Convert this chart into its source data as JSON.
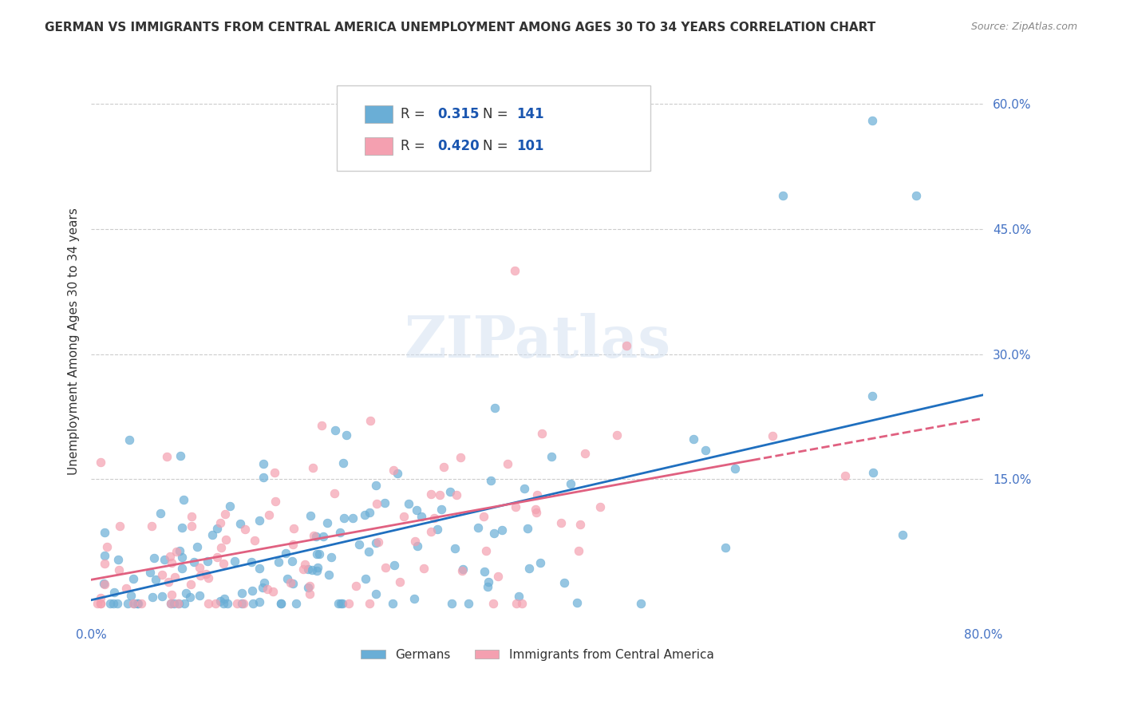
{
  "title": "GERMAN VS IMMIGRANTS FROM CENTRAL AMERICA UNEMPLOYMENT AMONG AGES 30 TO 34 YEARS CORRELATION CHART",
  "source_text": "Source: ZipAtlas.com",
  "xlabel": "",
  "ylabel": "Unemployment Among Ages 30 to 34 years",
  "xlim": [
    0.0,
    0.8
  ],
  "ylim": [
    -0.02,
    0.65
  ],
  "xticks": [
    0.0,
    0.1,
    0.2,
    0.3,
    0.4,
    0.5,
    0.6,
    0.7,
    0.8
  ],
  "xticklabels": [
    "0.0%",
    "",
    "",
    "",
    "",
    "",
    "",
    "",
    "80.0%"
  ],
  "yticks_right": [
    0.15,
    0.3,
    0.45,
    0.6
  ],
  "ytick_right_labels": [
    "15.0%",
    "30.0%",
    "45.0%",
    "60.0%"
  ],
  "blue_color": "#6aaed6",
  "pink_color": "#f4a0b0",
  "blue_line_color": "#1f6fbf",
  "pink_line_color": "#e06080",
  "title_color": "#333333",
  "axis_label_color": "#333333",
  "tick_color": "#4472c4",
  "grid_color": "#cccccc",
  "watermark_text": "ZIPatlas",
  "legend_R_blue": "0.315",
  "legend_N_blue": "141",
  "legend_R_pink": "0.420",
  "legend_N_pink": "101",
  "legend_color": "#1a56b0",
  "legend_label_bottom": [
    "Germans",
    "Immigrants from Central America"
  ],
  "blue_scatter_seed": 42,
  "pink_scatter_seed": 7,
  "n_blue": 141,
  "n_pink": 101,
  "blue_R": 0.315,
  "pink_R": 0.42
}
